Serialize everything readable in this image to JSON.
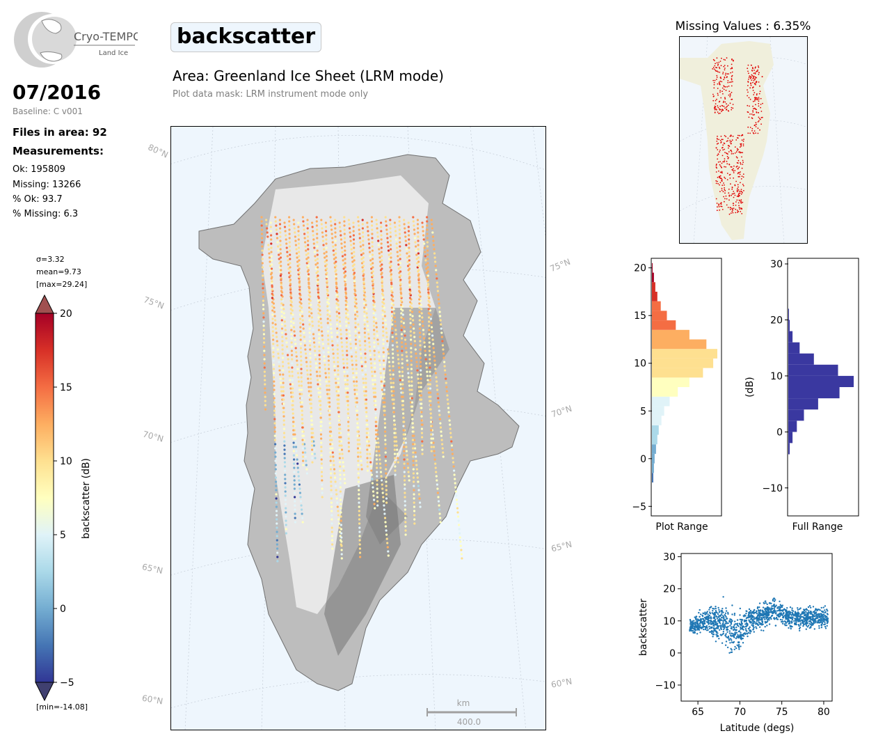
{
  "logo": {
    "name": "Cryo-TEMPO",
    "subtitle": "Land Ice"
  },
  "date": "07/2016",
  "baseline": "Baseline: C v001",
  "files": "Files in area: 92",
  "measurements": {
    "title": "Measurements:",
    "ok": "Ok: 195809",
    "missing": "Missing: 13266",
    "pct_ok": "% Ok: 93.7",
    "pct_missing": "% Missing: 6.3"
  },
  "stats": {
    "sigma": "σ=3.32",
    "mean": "mean=9.73",
    "max": "[max=29.24]",
    "min": "[min=-14.08]"
  },
  "parameter": "backscatter",
  "area": "Area: Greenland Ice Sheet (LRM mode)",
  "mask": "Plot data mask: LRM instrument mode only",
  "missing_title": "Missing Values : 6.35%",
  "scale_bar": {
    "unit": "km",
    "value": "400.0"
  },
  "lat_labels": {
    "left": [
      "80°N",
      "75°N",
      "70°N",
      "65°N",
      "60°N"
    ],
    "right": [
      "75°N",
      "70°N",
      "65°N",
      "60°N"
    ]
  },
  "colors": {
    "ocean": "#eef6fd",
    "land": "#f0efdc",
    "missing": "#e00000",
    "hist_full": "#3a38a0",
    "scatter": "#1f77b4"
  },
  "chart_data": [
    {
      "type": "heatmap",
      "name": "map",
      "label": "backscatter (dB)",
      "colormap": "RdYlBu_r",
      "vmin": -5,
      "vmax": 20,
      "ticks": [
        "20",
        "15",
        "10",
        "5",
        "0",
        "−5"
      ]
    },
    {
      "type": "bar",
      "orientation": "horizontal",
      "xlabel": "Plot Range",
      "ylim": [
        -6,
        21
      ],
      "yticks": [
        "20",
        "15",
        "10",
        "5",
        "0",
        "−5"
      ],
      "bins": [
        -2,
        -1,
        0,
        1,
        2,
        3,
        4,
        5,
        6,
        7,
        8,
        9,
        10,
        11,
        12,
        13,
        14,
        15,
        16,
        17,
        18,
        19,
        20
      ],
      "counts": [
        2,
        3,
        4,
        6,
        8,
        10,
        14,
        18,
        26,
        38,
        55,
        75,
        90,
        96,
        80,
        55,
        35,
        22,
        13,
        8,
        5,
        3,
        1
      ]
    },
    {
      "type": "bar",
      "orientation": "horizontal",
      "xlabel": "Full Range",
      "ylabel": "(dB)",
      "ylim": [
        -15,
        31
      ],
      "yticks": [
        "30",
        "20",
        "10",
        "0",
        "−10"
      ],
      "bins": [
        -3,
        -1,
        1,
        3,
        5,
        7,
        9,
        11,
        13,
        15,
        17,
        19,
        21
      ],
      "counts": [
        2,
        6,
        12,
        22,
        42,
        72,
        92,
        70,
        36,
        16,
        6,
        2,
        1
      ]
    },
    {
      "type": "scatter",
      "xlabel": "Latitude (degs)",
      "ylabel": "backscatter",
      "xlim": [
        63,
        81
      ],
      "ylim": [
        -15,
        31
      ],
      "xticks": [
        "65",
        "70",
        "75",
        "80"
      ],
      "yticks": [
        "30",
        "20",
        "10",
        "0",
        "−10"
      ],
      "trend_lat": [
        64,
        66,
        68,
        69,
        70,
        71,
        72,
        73,
        74,
        75,
        76,
        78,
        80
      ],
      "trend_mean": [
        8,
        10,
        9,
        6,
        7,
        10,
        11,
        12,
        13,
        12,
        11,
        11,
        11
      ],
      "trend_spread": [
        3,
        6,
        9,
        10,
        9,
        6,
        5,
        6,
        6,
        5,
        5,
        5,
        5
      ]
    }
  ]
}
